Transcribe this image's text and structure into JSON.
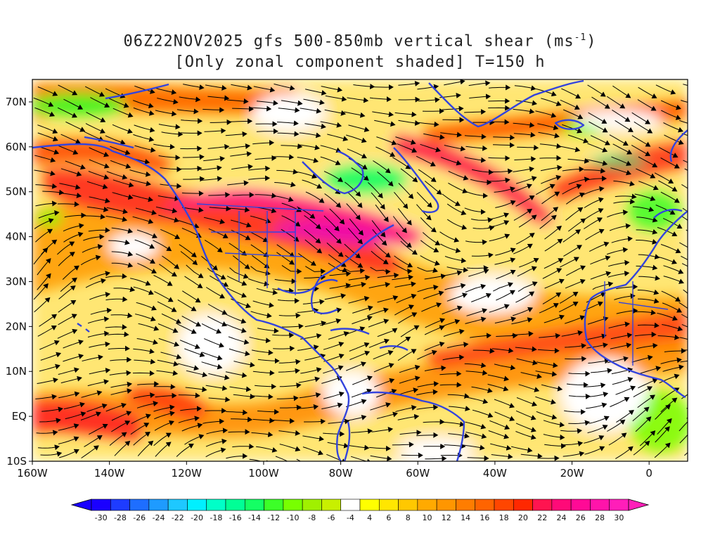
{
  "title": {
    "line1": "06Z22NOV2025 gfs 500-850mb vertical shear (ms",
    "line1_unit_sup": "-1",
    "line1_end": ")",
    "line2": "[Only zonal component shaded] T=150 h"
  },
  "map": {
    "lon_range": [
      -160,
      10
    ],
    "lat_range": [
      -10,
      75
    ],
    "x_ticks": [
      {
        "lon": -160,
        "label": "160W"
      },
      {
        "lon": -140,
        "label": "140W"
      },
      {
        "lon": -120,
        "label": "120W"
      },
      {
        "lon": -100,
        "label": "100W"
      },
      {
        "lon": -80,
        "label": "80W"
      },
      {
        "lon": -60,
        "label": "60W"
      },
      {
        "lon": -40,
        "label": "40W"
      },
      {
        "lon": -20,
        "label": "20W"
      },
      {
        "lon": 0,
        "label": "0"
      }
    ],
    "y_ticks": [
      {
        "lat": 70,
        "label": "70N"
      },
      {
        "lat": 60,
        "label": "60N"
      },
      {
        "lat": 50,
        "label": "50N"
      },
      {
        "lat": 40,
        "label": "40N"
      },
      {
        "lat": 30,
        "label": "30N"
      },
      {
        "lat": 20,
        "label": "20N"
      },
      {
        "lat": 10,
        "label": "10N"
      },
      {
        "lat": 0,
        "label": "EQ"
      },
      {
        "lat": -10,
        "label": "10S"
      }
    ],
    "coastline_color": "#3344dd",
    "streamline_color": "#000000"
  },
  "colorbar": {
    "labels": [
      "-30",
      "-28",
      "-26",
      "-24",
      "-22",
      "-20",
      "-18",
      "-16",
      "-14",
      "-12",
      "-10",
      "-8",
      "-6",
      "-4",
      "4",
      "6",
      "8",
      "10",
      "12",
      "14",
      "16",
      "18",
      "20",
      "22",
      "24",
      "26",
      "28",
      "30"
    ],
    "colors": [
      "#1a00ff",
      "#1e3cff",
      "#1e6eff",
      "#1e9bff",
      "#1ec8ff",
      "#00f0ff",
      "#00ffc8",
      "#00ff96",
      "#14ff64",
      "#3cff28",
      "#78ff00",
      "#a0f000",
      "#c8f000",
      "#ffffff",
      "#ffff00",
      "#ffe600",
      "#ffc800",
      "#ffaa00",
      "#ff9600",
      "#ff7d00",
      "#ff6400",
      "#ff4600",
      "#ff2800",
      "#ff1450",
      "#ff0a78",
      "#ff0a96",
      "#ff14aa",
      "#ff1eb9"
    ]
  }
}
